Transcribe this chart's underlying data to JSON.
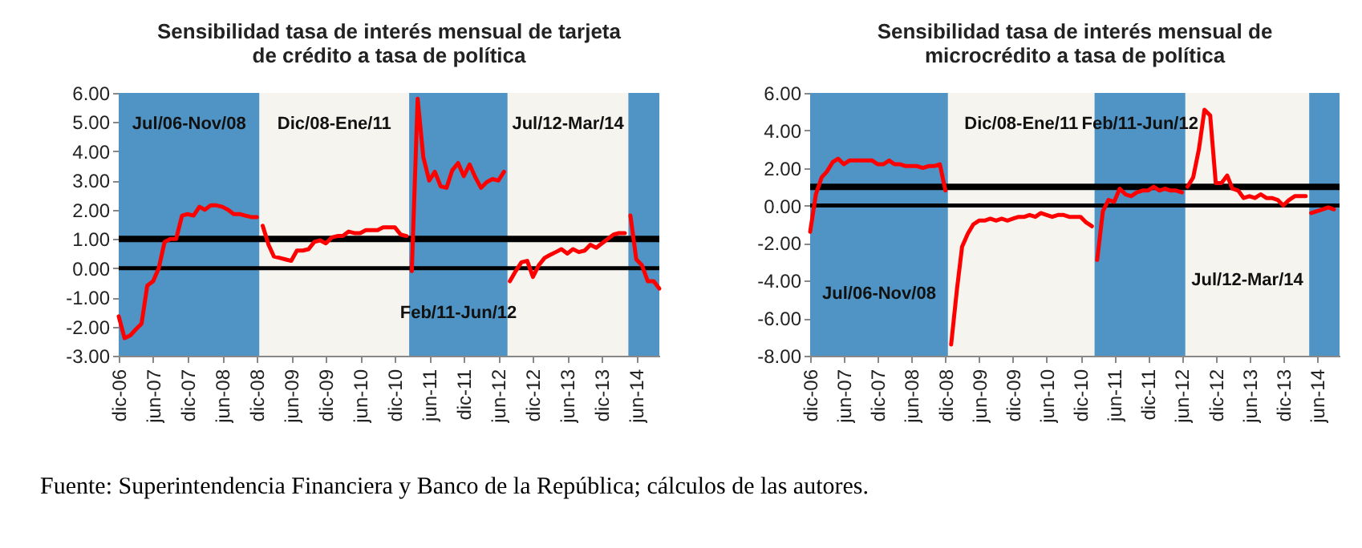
{
  "chart_data": [
    {
      "type": "line",
      "title": "Sensibilidad tasa de interés  mensual de tarjeta de crédito a tasa de política",
      "series": [
        {
          "color": "#ff0000",
          "x": [
            "2006-12",
            "2007-01",
            "2007-02",
            "2007-03",
            "2007-04",
            "2007-05",
            "2007-06",
            "2007-07",
            "2007-08",
            "2007-09",
            "2007-10",
            "2007-11",
            "2007-12",
            "2008-01",
            "2008-02",
            "2008-03",
            "2008-04",
            "2008-05",
            "2008-06",
            "2008-07",
            "2008-08",
            "2008-09",
            "2008-10",
            "2008-11",
            "2008-12"
          ],
          "values": [
            -1.65,
            -2.4,
            -2.3,
            -2.1,
            -1.9,
            -0.6,
            -0.45,
            0.0,
            0.9,
            1.0,
            1.0,
            1.8,
            1.85,
            1.8,
            2.1,
            2.0,
            2.15,
            2.15,
            2.1,
            2.0,
            1.85,
            1.85,
            1.8,
            1.75,
            1.75
          ]
        },
        {
          "color": "#ff0000",
          "x": [
            "2009-01",
            "2009-02",
            "2009-03",
            "2009-04",
            "2009-05",
            "2009-06",
            "2009-07",
            "2009-08",
            "2009-09",
            "2009-10",
            "2009-11",
            "2009-12",
            "2010-01",
            "2010-02",
            "2010-03",
            "2010-04",
            "2010-05",
            "2010-06",
            "2010-07",
            "2010-08",
            "2010-09",
            "2010-10",
            "2010-11",
            "2010-12",
            "2011-01",
            "2011-02"
          ],
          "values": [
            1.45,
            0.8,
            0.4,
            0.35,
            0.3,
            0.25,
            0.6,
            0.6,
            0.65,
            0.9,
            0.95,
            0.85,
            1.05,
            1.1,
            1.1,
            1.25,
            1.2,
            1.2,
            1.3,
            1.3,
            1.3,
            1.4,
            1.4,
            1.4,
            1.15,
            1.1
          ]
        },
        {
          "color": "#ff0000",
          "x": [
            "2011-03",
            "2011-04",
            "2011-05",
            "2011-06",
            "2011-07",
            "2011-08",
            "2011-09",
            "2011-10",
            "2011-11",
            "2011-12",
            "2012-01",
            "2012-02",
            "2012-03",
            "2012-04",
            "2012-05",
            "2012-06",
            "2012-07"
          ],
          "values": [
            -0.1,
            5.8,
            3.8,
            3.0,
            3.3,
            2.8,
            2.75,
            3.35,
            3.6,
            3.15,
            3.55,
            3.1,
            2.75,
            2.95,
            3.05,
            3.0,
            3.3
          ]
        },
        {
          "color": "#ff0000",
          "x": [
            "2012-08",
            "2012-09",
            "2012-10",
            "2012-11",
            "2012-12",
            "2013-01",
            "2013-02",
            "2013-03",
            "2013-04",
            "2013-05",
            "2013-06",
            "2013-07",
            "2013-08",
            "2013-09",
            "2013-10",
            "2013-11",
            "2013-12",
            "2014-01",
            "2014-02",
            "2014-03",
            "2014-04"
          ],
          "values": [
            -0.45,
            -0.1,
            0.2,
            0.25,
            -0.3,
            0.1,
            0.35,
            0.45,
            0.55,
            0.65,
            0.5,
            0.65,
            0.55,
            0.6,
            0.8,
            0.7,
            0.85,
            1.0,
            1.15,
            1.2,
            1.2
          ]
        },
        {
          "color": "#ff0000",
          "x": [
            "2014-05",
            "2014-06",
            "2014-07",
            "2014-08",
            "2014-09",
            "2014-10"
          ],
          "values": [
            1.8,
            0.3,
            0.1,
            -0.45,
            -0.45,
            -0.7
          ]
        }
      ],
      "xlim": [
        "2006-12",
        "2014-10"
      ],
      "xticks": [
        {
          "value": "2006-12",
          "label": "dic-06"
        },
        {
          "value": "2007-06",
          "label": "jun-07"
        },
        {
          "value": "2007-12",
          "label": "dic-07"
        },
        {
          "value": "2008-06",
          "label": "jun-08"
        },
        {
          "value": "2008-12",
          "label": "dic-08"
        },
        {
          "value": "2009-06",
          "label": "jun-09"
        },
        {
          "value": "2009-12",
          "label": "dic-09"
        },
        {
          "value": "2010-06",
          "label": "jun-10"
        },
        {
          "value": "2010-12",
          "label": "dic-10"
        },
        {
          "value": "2011-06",
          "label": "jun-11"
        },
        {
          "value": "2011-12",
          "label": "dic-11"
        },
        {
          "value": "2012-06",
          "label": "jun-12"
        },
        {
          "value": "2012-12",
          "label": "dic-12"
        },
        {
          "value": "2013-06",
          "label": "jun-13"
        },
        {
          "value": "2013-12",
          "label": "dic-13"
        },
        {
          "value": "2014-06",
          "label": "jun-14"
        }
      ],
      "ylim": [
        -3,
        6
      ],
      "yticks": [
        {
          "value": 6,
          "label": "6.00"
        },
        {
          "value": 5,
          "label": "5.00"
        },
        {
          "value": 4,
          "label": "4.00"
        },
        {
          "value": 3,
          "label": "3.00"
        },
        {
          "value": 2,
          "label": "2.00"
        },
        {
          "value": 1,
          "label": "1.00"
        },
        {
          "value": 0,
          "label": "0.00"
        },
        {
          "value": -1,
          "label": "-1.00"
        },
        {
          "value": -2,
          "label": "-2.00"
        },
        {
          "value": -3,
          "label": "-3.00"
        }
      ],
      "bands": [
        {
          "axis": "x",
          "from": "2006-12",
          "to": "2008-12-15",
          "color": "#4f94c4",
          "label": "Jul/06-Nov/08"
        },
        {
          "axis": "x",
          "from": "2008-12-15",
          "to": "2011-02-15",
          "color": "#f6f4ee",
          "label": "Dic/08-Ene/11"
        },
        {
          "axis": "x",
          "from": "2011-02-15",
          "to": "2012-07-20",
          "color": "#4f94c4",
          "label": "Feb/11-Jun/12"
        },
        {
          "axis": "x",
          "from": "2012-07-20",
          "to": "2014-04-20",
          "color": "#f6f4ee",
          "label": "Jul/12-Mar/14"
        },
        {
          "axis": "x",
          "from": "2014-04-20",
          "to": "2014-10",
          "color": "#4f94c4"
        }
      ],
      "ref_lines": [
        {
          "axis": "y",
          "value": 1,
          "color": "#000000"
        },
        {
          "axis": "y",
          "value": 0,
          "color": "#000000"
        }
      ],
      "annotations": [
        "Fuente: Superintendencia Financiera y Banco de la República; cálculos de las autores."
      ]
    },
    {
      "type": "line",
      "title": "Sensibilidad tasa de interés  mensual de microcrédito a tasa de política",
      "series": [
        {
          "color": "#ff0000",
          "x": [
            "2006-12",
            "2007-01",
            "2007-02",
            "2007-03",
            "2007-04",
            "2007-05",
            "2007-06",
            "2007-07",
            "2007-08",
            "2007-09",
            "2007-10",
            "2007-11",
            "2007-12",
            "2008-01",
            "2008-02",
            "2008-03",
            "2008-04",
            "2008-05",
            "2008-06",
            "2008-07",
            "2008-08",
            "2008-09",
            "2008-10",
            "2008-11",
            "2008-12"
          ],
          "values": [
            -1.4,
            0.6,
            1.5,
            1.8,
            2.3,
            2.5,
            2.2,
            2.4,
            2.4,
            2.4,
            2.4,
            2.4,
            2.2,
            2.2,
            2.4,
            2.2,
            2.2,
            2.1,
            2.1,
            2.1,
            2.0,
            2.1,
            2.1,
            2.2,
            0.8
          ]
        },
        {
          "color": "#ff0000",
          "x": [
            "2009-01",
            "2009-02",
            "2009-03",
            "2009-04",
            "2009-05",
            "2009-06",
            "2009-07",
            "2009-08",
            "2009-09",
            "2009-10",
            "2009-11",
            "2009-12",
            "2010-01",
            "2010-02",
            "2010-03",
            "2010-04",
            "2010-05",
            "2010-06",
            "2010-07",
            "2010-08",
            "2010-09",
            "2010-10",
            "2010-11",
            "2010-12",
            "2011-01",
            "2011-02"
          ],
          "values": [
            -7.4,
            -4.5,
            -2.2,
            -1.5,
            -1.0,
            -0.8,
            -0.8,
            -0.7,
            -0.8,
            -0.7,
            -0.8,
            -0.7,
            -0.6,
            -0.6,
            -0.5,
            -0.6,
            -0.4,
            -0.5,
            -0.6,
            -0.5,
            -0.5,
            -0.6,
            -0.6,
            -0.6,
            -0.9,
            -1.1
          ]
        },
        {
          "color": "#ff0000",
          "x": [
            "2011-03",
            "2011-04",
            "2011-05",
            "2011-06",
            "2011-07",
            "2011-08",
            "2011-09",
            "2011-10",
            "2011-11",
            "2011-12",
            "2012-01",
            "2012-02",
            "2012-03",
            "2012-04",
            "2012-05",
            "2012-06"
          ],
          "values": [
            -2.9,
            -0.3,
            0.3,
            0.2,
            0.9,
            0.6,
            0.5,
            0.7,
            0.8,
            0.8,
            1.0,
            0.8,
            0.9,
            0.8,
            0.8,
            0.7
          ]
        },
        {
          "color": "#ff0000",
          "x": [
            "2012-07",
            "2012-08",
            "2012-09",
            "2012-10",
            "2012-11",
            "2012-12",
            "2013-01",
            "2013-02",
            "2013-03",
            "2013-04",
            "2013-05",
            "2013-06",
            "2013-07",
            "2013-08",
            "2013-09",
            "2013-10",
            "2013-11",
            "2013-12",
            "2014-01",
            "2014-02",
            "2014-03",
            "2014-04"
          ],
          "values": [
            1.0,
            1.5,
            3.0,
            5.1,
            4.8,
            1.2,
            1.2,
            1.6,
            0.9,
            0.8,
            0.4,
            0.5,
            0.4,
            0.6,
            0.4,
            0.4,
            0.3,
            0.0,
            0.3,
            0.5,
            0.5,
            0.5
          ]
        },
        {
          "color": "#ff0000",
          "x": [
            "2014-05",
            "2014-06",
            "2014-07",
            "2014-08",
            "2014-09"
          ],
          "values": [
            -0.4,
            -0.3,
            -0.2,
            -0.1,
            -0.2
          ]
        }
      ],
      "xlim": [
        "2006-12",
        "2014-10"
      ],
      "xticks": [
        {
          "value": "2006-12",
          "label": "dic-06"
        },
        {
          "value": "2007-06",
          "label": "jun-07"
        },
        {
          "value": "2007-12",
          "label": "dic-07"
        },
        {
          "value": "2008-06",
          "label": "jun-08"
        },
        {
          "value": "2008-12",
          "label": "dic-08"
        },
        {
          "value": "2009-06",
          "label": "jun-09"
        },
        {
          "value": "2009-12",
          "label": "dic-09"
        },
        {
          "value": "2010-06",
          "label": "jun-10"
        },
        {
          "value": "2010-12",
          "label": "dic-10"
        },
        {
          "value": "2011-06",
          "label": "jun-11"
        },
        {
          "value": "2011-12",
          "label": "dic-11"
        },
        {
          "value": "2012-06",
          "label": "jun-12"
        },
        {
          "value": "2012-12",
          "label": "dic-12"
        },
        {
          "value": "2013-06",
          "label": "jun-13"
        },
        {
          "value": "2013-12",
          "label": "dic-13"
        },
        {
          "value": "2014-06",
          "label": "jun-14"
        }
      ],
      "ylim": [
        -8,
        6
      ],
      "yticks": [
        {
          "value": 6,
          "label": "6.00"
        },
        {
          "value": 4,
          "label": "4.00"
        },
        {
          "value": 2,
          "label": "2.00"
        },
        {
          "value": 0,
          "label": "0.00"
        },
        {
          "value": -2,
          "label": "-2.00"
        },
        {
          "value": -4,
          "label": "-4.00"
        },
        {
          "value": -6,
          "label": "-6.00"
        },
        {
          "value": -8,
          "label": "-8.00"
        }
      ],
      "bands": [
        {
          "axis": "x",
          "from": "2006-12",
          "to": "2008-12-15",
          "color": "#4f94c4",
          "label": "Jul/06-Nov/08"
        },
        {
          "axis": "x",
          "from": "2008-12-15",
          "to": "2011-02-15",
          "color": "#f6f4ee",
          "label": "Dic/08-Ene/11"
        },
        {
          "axis": "x",
          "from": "2011-02-15",
          "to": "2012-06-20",
          "color": "#4f94c4",
          "label": "Feb/11-Jun/12"
        },
        {
          "axis": "x",
          "from": "2012-06-20",
          "to": "2014-04-20",
          "color": "#f6f4ee",
          "label": "Jul/12-Mar/14"
        },
        {
          "axis": "x",
          "from": "2014-04-20",
          "to": "2014-10",
          "color": "#4f94c4"
        }
      ],
      "ref_lines": [
        {
          "axis": "y",
          "value": 1,
          "color": "#000000"
        },
        {
          "axis": "y",
          "value": 0,
          "color": "#000000"
        }
      ]
    }
  ]
}
